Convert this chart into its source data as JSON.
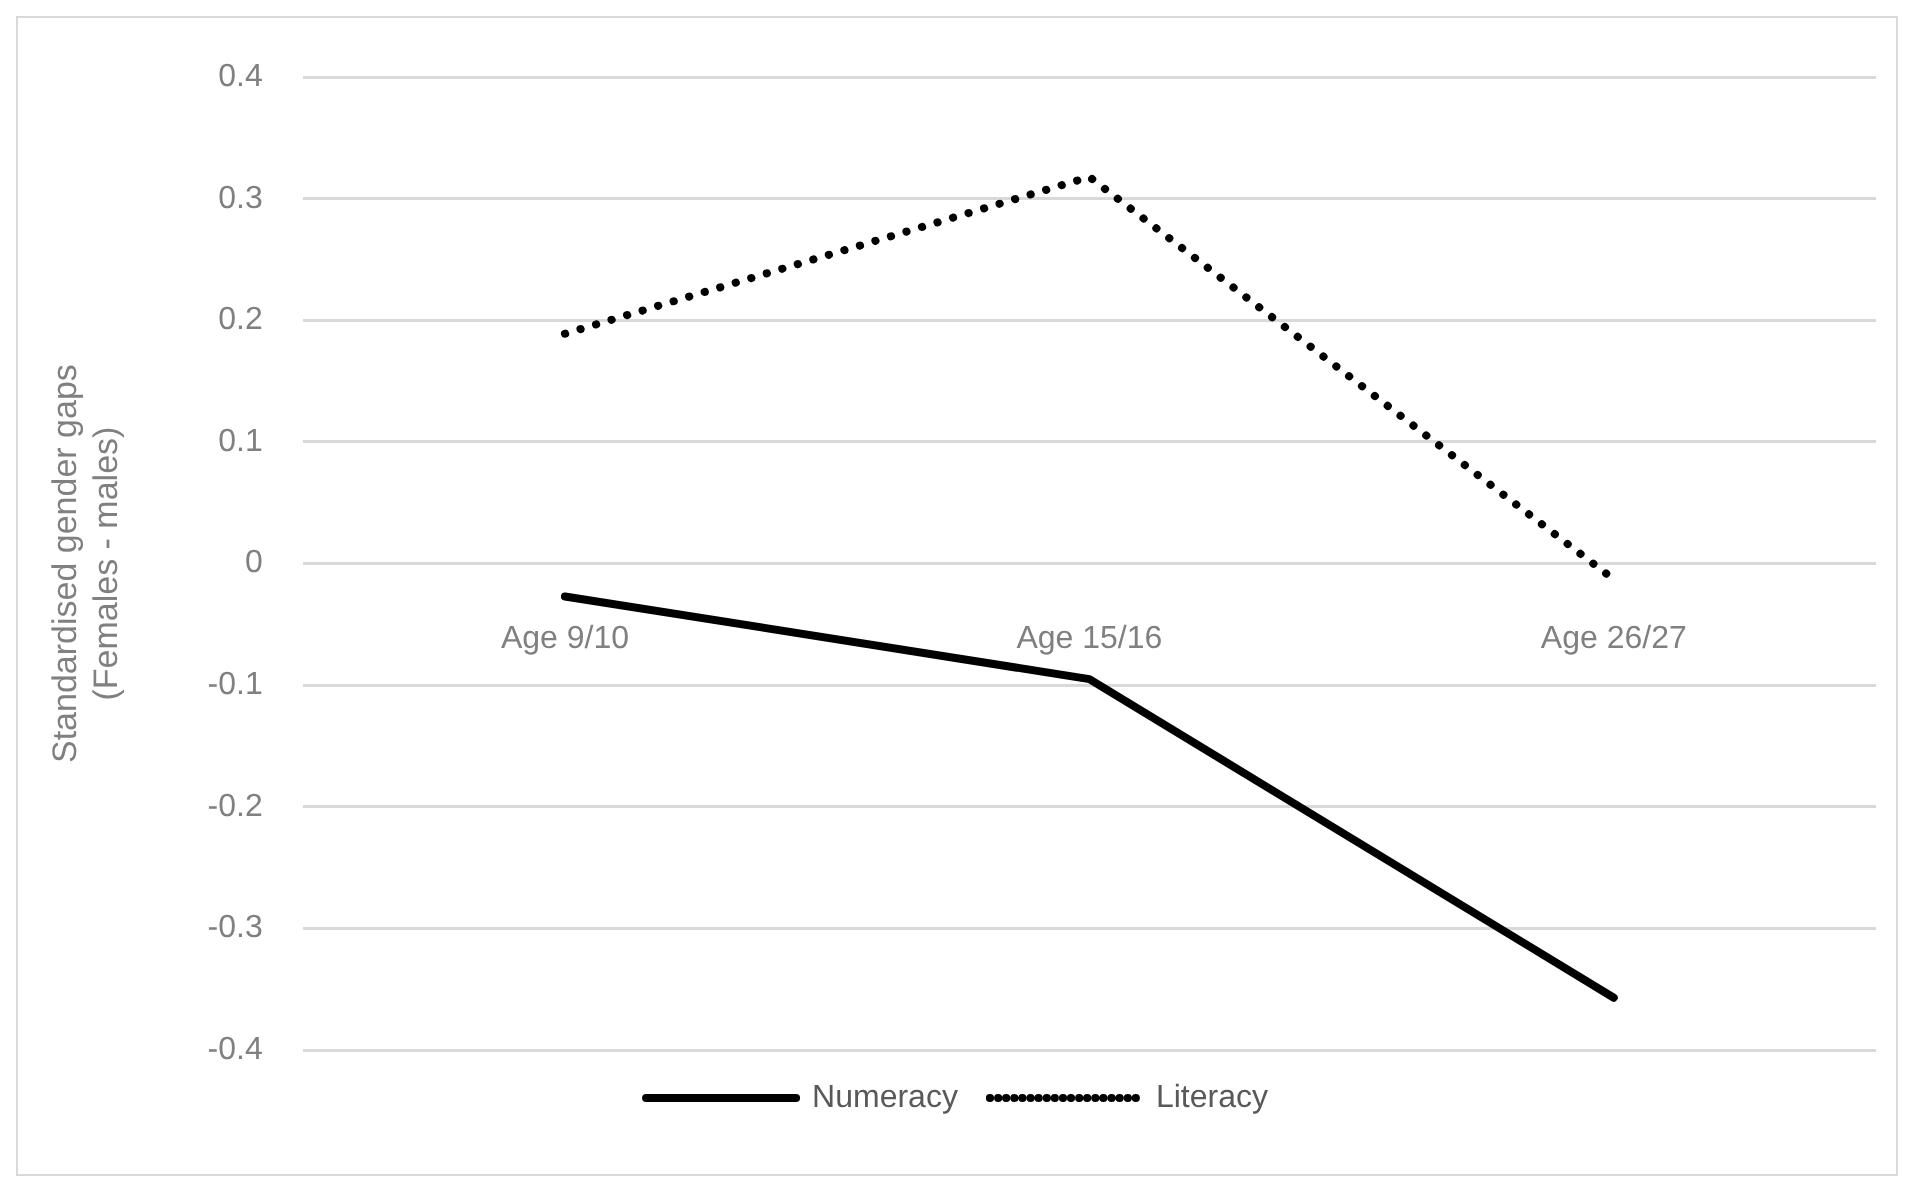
{
  "chart_data": {
    "type": "line",
    "ylabel": "Standardised gender gaps\n(Females - males)",
    "categories": [
      "Age 9/10",
      "Age 15/16",
      "Age 26/27"
    ],
    "series": [
      {
        "name": "Numeracy",
        "color": "#000000",
        "values": [
          -0.027,
          -0.095,
          -0.357
        ],
        "line_style": "solid"
      },
      {
        "name": "Literacy",
        "color": "#000000",
        "values": [
          0.189,
          0.318,
          -0.013
        ],
        "line_style": "dotted"
      }
    ],
    "ylim": [
      -0.4,
      0.4
    ],
    "yticks": [
      -0.4,
      -0.3,
      -0.2,
      -0.1,
      0,
      0.1,
      0.2,
      0.3,
      0.4
    ],
    "grid": "y",
    "legend": "bottom",
    "marker": "none"
  }
}
